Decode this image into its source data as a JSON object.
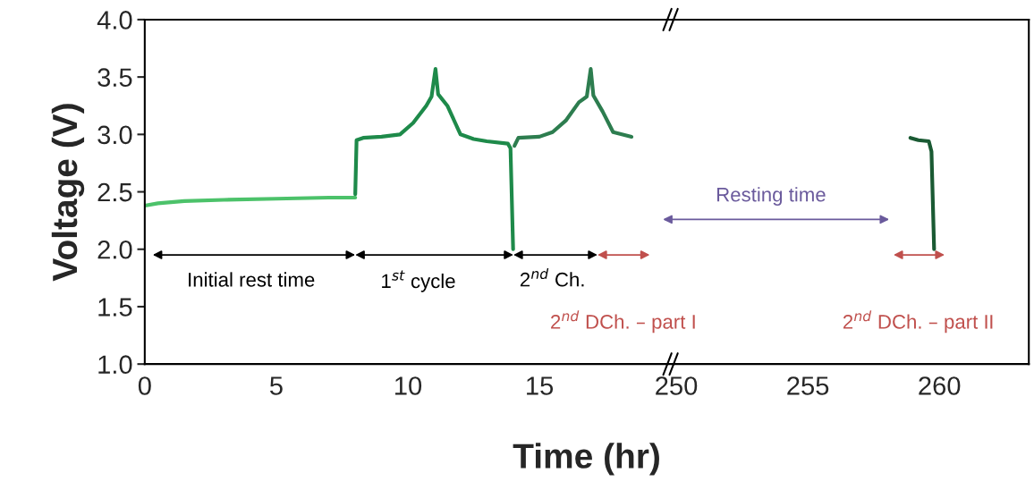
{
  "chart_data": [
    {
      "type": "line",
      "ylabel": "Voltage (V)",
      "xlabel": "Time (hr)",
      "xlim": [
        0,
        20.1
      ],
      "xticks": [
        0,
        5,
        10,
        15
      ],
      "ylim": [
        1,
        4
      ],
      "yticks": [
        {
          "value": 1,
          "label": "1.0"
        },
        {
          "value": 1.5,
          "label": "1.5"
        },
        {
          "value": 2,
          "label": "2.0"
        },
        {
          "value": 2.5,
          "label": "2.5"
        },
        {
          "value": 3,
          "label": "3.0"
        },
        {
          "value": 3.5,
          "label": "3.5"
        },
        {
          "value": 4,
          "label": "4.0"
        }
      ],
      "series": [
        {
          "color": "#4cc26a",
          "x": [
            0,
            0.5,
            1.5,
            3,
            5,
            7,
            8.0
          ],
          "values": [
            2.38,
            2.4,
            2.42,
            2.43,
            2.44,
            2.45,
            2.45
          ]
        },
        {
          "color": "#1e8a4a",
          "x": [
            8.0,
            8.05,
            8.3,
            9,
            9.7,
            10.2,
            10.7,
            10.9,
            11.05,
            11.15,
            11.5,
            12,
            12.5,
            13,
            13.8,
            13.9,
            14.0
          ],
          "values": [
            2.48,
            2.95,
            2.97,
            2.98,
            3.0,
            3.1,
            3.25,
            3.33,
            3.57,
            3.35,
            3.25,
            3.0,
            2.96,
            2.94,
            2.92,
            2.88,
            2.0
          ]
        },
        {
          "color": "#2d7d4f",
          "x": [
            14.05,
            14.2,
            15,
            15.5,
            16,
            16.5,
            16.8,
            16.95,
            17.05,
            17.4,
            17.8,
            18.5
          ],
          "values": [
            2.9,
            2.97,
            2.98,
            3.02,
            3.12,
            3.28,
            3.33,
            3.57,
            3.34,
            3.2,
            3.02,
            2.98
          ]
        }
      ],
      "annotations": [
        "Initial rest time",
        "1$^{st}$ cycle",
        "2$^{nd}$ Ch.",
        "2$^{nd}$ DCh. – part I"
      ]
    },
    {
      "type": "line",
      "tick_labels": "x",
      "xlim": [
        249.9,
        263.4
      ],
      "xticks": [
        250,
        255,
        260
      ],
      "ylim": [
        1,
        4
      ],
      "series": [
        {
          "color": "#1a5a33",
          "x": [
            258.9,
            259.2,
            259.6,
            259.7,
            259.8
          ],
          "values": [
            2.97,
            2.95,
            2.94,
            2.85,
            2.0
          ]
        }
      ],
      "annotations": [
        "Resting time",
        "2$^{nd}$ DCh. – part II"
      ]
    }
  ]
}
